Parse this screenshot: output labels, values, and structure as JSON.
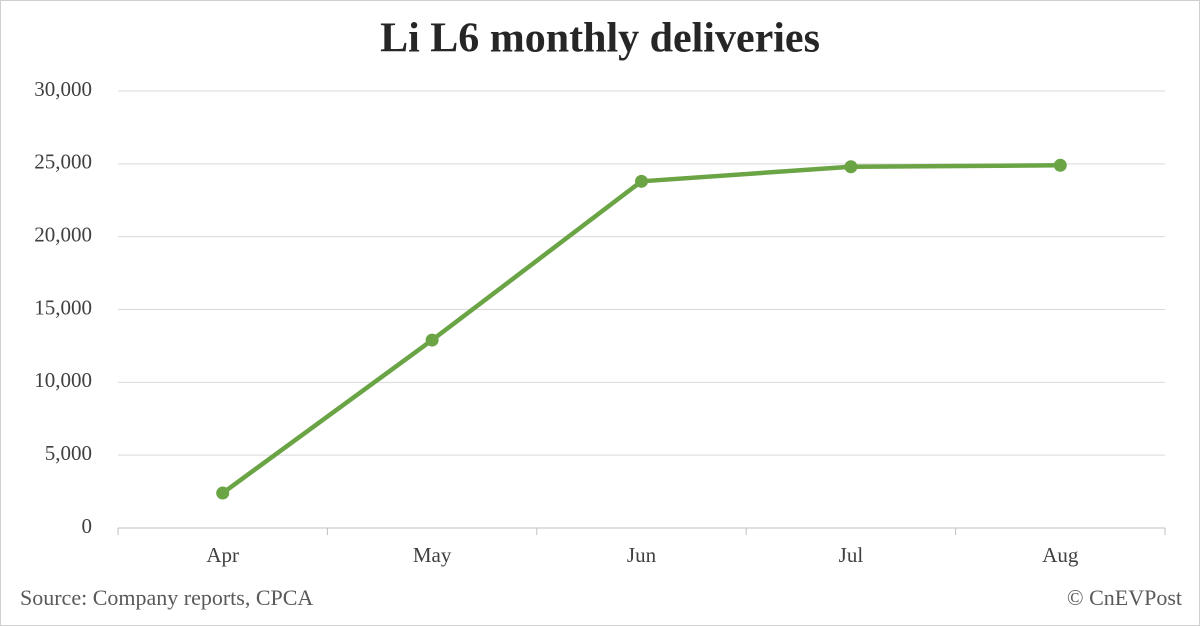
{
  "chart_data": {
    "type": "line",
    "title": "Li L6 monthly deliveries",
    "categories": [
      "Apr",
      "May",
      "Jun",
      "Jul",
      "Aug"
    ],
    "series": [
      {
        "name": "Li L6",
        "color": "#6aa444",
        "values": [
          2400,
          12900,
          23800,
          24800,
          24900
        ]
      }
    ],
    "ylim": [
      0,
      30000
    ],
    "yticks": [
      0,
      {
        "value": 5000,
        "label": "5,000"
      },
      {
        "value": 10000,
        "label": "10,000"
      },
      {
        "value": 15000,
        "label": "15,000"
      },
      {
        "value": 20000,
        "label": "20,000"
      },
      {
        "value": 25000,
        "label": "25,000"
      },
      {
        "value": 30000,
        "label": "30,000"
      }
    ],
    "grid": true,
    "source": "Source: Company reports, CPCA",
    "credit": "© CnEVPost"
  }
}
